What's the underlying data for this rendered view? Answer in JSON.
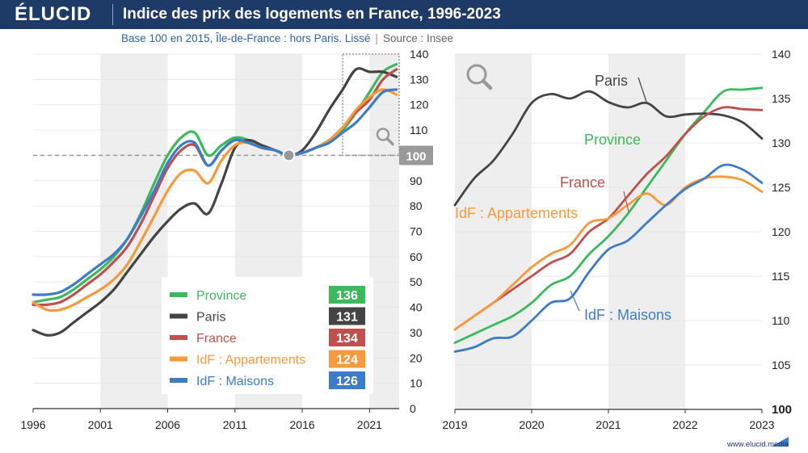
{
  "header": {
    "logo": "ÉLUCID",
    "title": "Indice des prix des logements en France, 1996-2023",
    "subtitle_main": "Base 100 en 2015, Île-de-France : hors Paris. Lissé",
    "subtitle_source": "Source : Insee",
    "footer": "www.elucid.media"
  },
  "colors": {
    "Province": "#3cb95a",
    "Paris": "#444444",
    "France": "#c0504d",
    "IdF : Appartements": "#f79a3c",
    "IdF : Maisons": "#3d7cc9",
    "header_bg": "#1e3a66",
    "band": "#eeeeee"
  },
  "chart_data": [
    {
      "type": "line",
      "xlim": [
        1996,
        2023.2
      ],
      "ylim": [
        0,
        140
      ],
      "x_ticks": [
        1996,
        2001,
        2006,
        2011,
        2016,
        2021
      ],
      "y_ticks": [
        0,
        10,
        20,
        30,
        40,
        50,
        60,
        70,
        80,
        90,
        100,
        110,
        120,
        130,
        140
      ],
      "reference_line": 100,
      "reference_label": "100",
      "legend": [
        {
          "name": "Province",
          "last_value": "136"
        },
        {
          "name": "Paris",
          "last_value": "131"
        },
        {
          "name": "France",
          "last_value": "134"
        },
        {
          "name": "IdF : Appartements",
          "last_value": "124"
        },
        {
          "name": "IdF : Maisons",
          "last_value": "126"
        }
      ],
      "zoom_box": {
        "x": [
          2019,
          2023.2
        ],
        "y": [
          100,
          140
        ]
      },
      "series": [
        {
          "name": "Province",
          "x": [
            1996,
            1997,
            1998,
            1999,
            2000,
            2001,
            2002,
            2003,
            2004,
            2005,
            2006,
            2007,
            2008,
            2009,
            2010,
            2011,
            2012,
            2013,
            2014,
            2015,
            2016,
            2017,
            2018,
            2019,
            2020,
            2021,
            2022,
            2023
          ],
          "y": [
            42,
            43,
            44,
            47,
            51,
            55,
            60,
            67,
            77,
            89,
            100,
            107,
            109,
            100,
            104,
            107,
            106,
            103,
            102,
            100,
            101,
            103,
            106,
            110,
            117,
            125,
            133,
            136
          ]
        },
        {
          "name": "Paris",
          "x": [
            1996,
            1997,
            1998,
            1999,
            2000,
            2001,
            2002,
            2003,
            2004,
            2005,
            2006,
            2007,
            2008,
            2009,
            2010,
            2011,
            2012,
            2013,
            2014,
            2015,
            2016,
            2017,
            2018,
            2019,
            2020,
            2021,
            2022,
            2023
          ],
          "y": [
            31,
            29,
            30,
            34,
            38,
            42,
            47,
            54,
            61,
            68,
            74,
            79,
            81,
            77,
            89,
            103,
            106,
            104,
            102,
            100,
            102,
            109,
            118,
            126,
            134,
            133,
            133,
            131
          ]
        },
        {
          "name": "France",
          "x": [
            1996,
            1997,
            1998,
            1999,
            2000,
            2001,
            2002,
            2003,
            2004,
            2005,
            2006,
            2007,
            2008,
            2009,
            2010,
            2011,
            2012,
            2013,
            2014,
            2015,
            2016,
            2017,
            2018,
            2019,
            2020,
            2021,
            2022,
            2023
          ],
          "y": [
            41,
            41,
            42,
            45,
            49,
            53,
            58,
            64,
            73,
            84,
            95,
            102,
            104,
            96,
            102,
            106,
            105,
            103,
            102,
            100,
            101,
            103,
            106,
            111,
            117,
            122,
            130,
            134
          ]
        },
        {
          "name": "IdF : Appartements",
          "x": [
            1996,
            1997,
            1998,
            1999,
            2000,
            2001,
            2002,
            2003,
            2004,
            2005,
            2006,
            2007,
            2008,
            2009,
            2010,
            2011,
            2012,
            2013,
            2014,
            2015,
            2016,
            2017,
            2018,
            2019,
            2020,
            2021,
            2022,
            2023
          ],
          "y": [
            42,
            39,
            39,
            41,
            44,
            47,
            51,
            57,
            66,
            76,
            86,
            93,
            94,
            89,
            98,
            104,
            105,
            103,
            102,
            100,
            101,
            103,
            106,
            111,
            118,
            123,
            126,
            124
          ]
        },
        {
          "name": "IdF : Maisons",
          "x": [
            1996,
            1997,
            1998,
            1999,
            2000,
            2001,
            2002,
            2003,
            2004,
            2005,
            2006,
            2007,
            2008,
            2009,
            2010,
            2011,
            2012,
            2013,
            2014,
            2015,
            2016,
            2017,
            2018,
            2019,
            2020,
            2021,
            2022,
            2023
          ],
          "y": [
            45,
            45,
            46,
            49,
            53,
            57,
            61,
            67,
            76,
            86,
            97,
            104,
            105,
            96,
            102,
            106,
            105,
            103,
            102,
            100,
            101,
            103,
            105,
            109,
            113,
            119,
            125,
            126
          ]
        }
      ]
    },
    {
      "type": "line",
      "xlim": [
        2019,
        2023
      ],
      "ylim": [
        100,
        140
      ],
      "x_ticks": [
        2019,
        2020,
        2021,
        2022,
        2023
      ],
      "y_ticks": [
        100,
        105,
        110,
        115,
        120,
        125,
        130,
        135,
        140
      ],
      "series": [
        {
          "name": "Province",
          "label": "Province",
          "x": [
            2019,
            2019.25,
            2019.5,
            2019.75,
            2020,
            2020.25,
            2020.5,
            2020.75,
            2021,
            2021.25,
            2021.5,
            2021.75,
            2022,
            2022.25,
            2022.5,
            2022.75,
            2023
          ],
          "y": [
            107.5,
            108.5,
            109.5,
            110.5,
            112,
            114,
            115,
            117.5,
            119.5,
            122,
            125,
            128,
            131,
            133.5,
            135.8,
            136,
            136.2
          ]
        },
        {
          "name": "Paris",
          "label": "Paris",
          "x": [
            2019,
            2019.25,
            2019.5,
            2019.75,
            2020,
            2020.25,
            2020.5,
            2020.75,
            2021,
            2021.25,
            2021.5,
            2021.75,
            2022,
            2022.25,
            2022.5,
            2022.75,
            2023
          ],
          "y": [
            123,
            126,
            128,
            131,
            134.5,
            135.5,
            135,
            135.8,
            134.6,
            134,
            134.5,
            133,
            133.2,
            133.3,
            133.1,
            132.3,
            130.5
          ]
        },
        {
          "name": "France",
          "label": "France",
          "x": [
            2019,
            2019.25,
            2019.5,
            2019.75,
            2020,
            2020.25,
            2020.5,
            2020.75,
            2021,
            2021.25,
            2021.5,
            2021.75,
            2022,
            2022.25,
            2022.5,
            2022.75,
            2023
          ],
          "y": [
            109,
            110.5,
            112,
            113.5,
            115,
            116.5,
            117.5,
            120,
            121.5,
            124,
            126.5,
            128.5,
            131,
            133,
            134,
            133.8,
            133.7
          ]
        },
        {
          "name": "IdF : Appartements",
          "label": "IdF : Appartements",
          "x": [
            2019,
            2019.25,
            2019.5,
            2019.75,
            2020,
            2020.25,
            2020.5,
            2020.75,
            2021,
            2021.25,
            2021.5,
            2021.75,
            2022,
            2022.25,
            2022.5,
            2022.75,
            2023
          ],
          "y": [
            109,
            110.5,
            112,
            114,
            116,
            117.5,
            118.5,
            121,
            121.5,
            123,
            124.3,
            123,
            125,
            126,
            126.2,
            125.8,
            124.5
          ]
        },
        {
          "name": "IdF : Maisons",
          "label": "IdF : Maisons",
          "x": [
            2019,
            2019.25,
            2019.5,
            2019.75,
            2020,
            2020.25,
            2020.5,
            2020.75,
            2021,
            2021.25,
            2021.5,
            2021.75,
            2022,
            2022.25,
            2022.5,
            2022.75,
            2023
          ],
          "y": [
            106.5,
            107,
            108,
            108.2,
            110,
            112,
            112.5,
            115.5,
            118,
            119,
            121,
            123,
            124.8,
            126,
            127.5,
            127,
            125.5
          ]
        }
      ]
    }
  ]
}
